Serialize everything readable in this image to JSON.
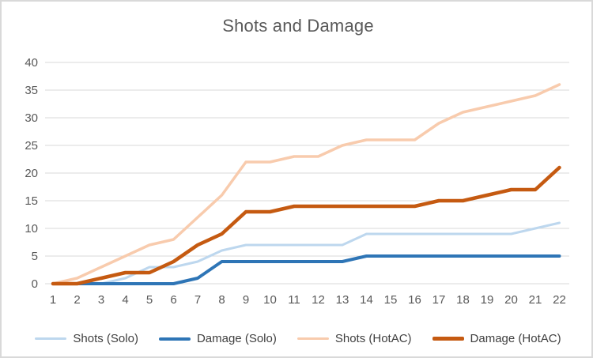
{
  "chart": {
    "title": "Shots and Damage"
  },
  "chart_data": {
    "type": "line",
    "title": "Shots and Damage",
    "x_labels": [
      "1",
      "2",
      "3",
      "4",
      "5",
      "6",
      "7",
      "8",
      "9",
      "10",
      "11",
      "12",
      "13",
      "14",
      "15",
      "16",
      "17",
      "18",
      "19",
      "20",
      "21",
      "22"
    ],
    "y_ticks": [
      0,
      5,
      10,
      15,
      20,
      25,
      30,
      35,
      40
    ],
    "ylim": [
      0,
      40
    ],
    "grid": "horizontal",
    "legend_position": "bottom",
    "series": [
      {
        "name": "Shots (Solo)",
        "color": "#bdd7ee",
        "values": [
          0,
          0,
          0,
          1,
          3,
          3,
          4,
          6,
          7,
          7,
          7,
          7,
          7,
          9,
          9,
          9,
          9,
          9,
          9,
          9,
          10,
          11
        ]
      },
      {
        "name": "Damage (Solo)",
        "color": "#2e75b6",
        "values": [
          0,
          0,
          0,
          0,
          0,
          0,
          1,
          4,
          4,
          4,
          4,
          4,
          4,
          5,
          5,
          5,
          5,
          5,
          5,
          5,
          5,
          5
        ]
      },
      {
        "name": "Shots (HotAC)",
        "color": "#f8cbad",
        "values": [
          0,
          1,
          3,
          5,
          7,
          8,
          12,
          16,
          22,
          22,
          23,
          23,
          25,
          26,
          26,
          26,
          29,
          31,
          32,
          33,
          34,
          36
        ]
      },
      {
        "name": "Damage (HotAC)",
        "color": "#c55a11",
        "values": [
          0,
          0,
          1,
          2,
          2,
          4,
          7,
          9,
          13,
          13,
          14,
          14,
          14,
          14,
          14,
          14,
          15,
          15,
          16,
          17,
          17,
          21
        ]
      }
    ],
    "colors": {
      "title_text": "#595959",
      "axis_text": "#595959",
      "legend_text": "#404040",
      "gridline": "#d9d9d9",
      "border": "#d9d9d9",
      "background": "#ffffff"
    }
  }
}
